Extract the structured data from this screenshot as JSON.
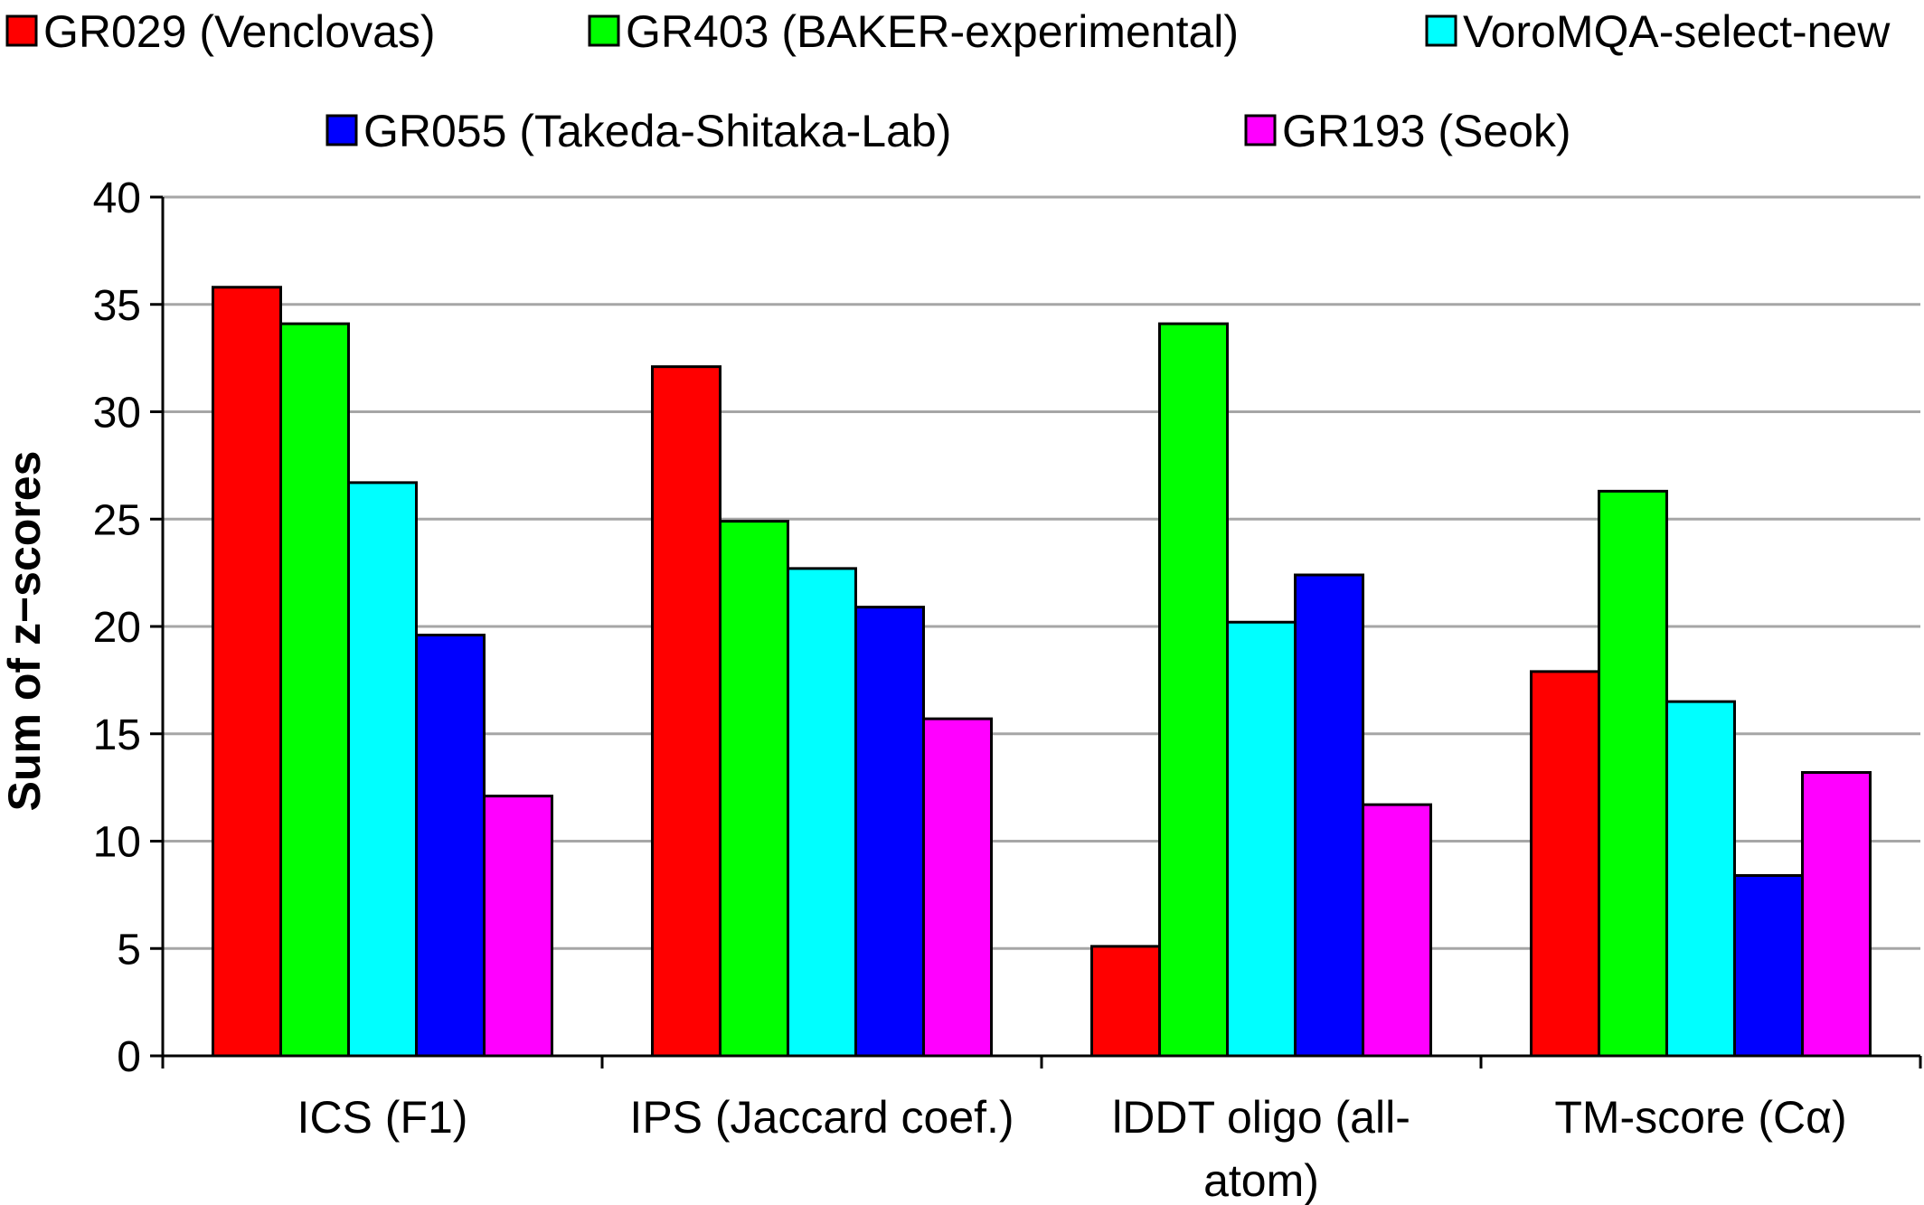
{
  "chart_data": {
    "type": "bar",
    "title": "",
    "xlabel": "",
    "ylabel": "Sum of z−scores",
    "ylim": [
      0,
      40
    ],
    "yticks": [
      0,
      5,
      10,
      15,
      20,
      25,
      30,
      35,
      40
    ],
    "grid": true,
    "legend_placement": "top",
    "categories": [
      [
        "ICS (F1)"
      ],
      [
        "IPS (Jaccard coef.)"
      ],
      [
        "lDDT oligo (all-",
        "atom)"
      ],
      [
        "TM-score (Cα)"
      ]
    ],
    "series": [
      {
        "name": "GR029 (Venclovas)",
        "color": "#ff0000",
        "values": [
          35.8,
          32.1,
          5.1,
          17.9
        ]
      },
      {
        "name": "GR403 (BAKER-experimental)",
        "color": "#00ff00",
        "values": [
          34.1,
          24.9,
          34.1,
          26.3
        ]
      },
      {
        "name": "VoroMQA-select-new",
        "color": "#00ffff",
        "values": [
          26.7,
          22.7,
          20.2,
          16.5
        ]
      },
      {
        "name": "GR055 (Takeda-Shitaka-Lab)",
        "color": "#0000ff",
        "values": [
          19.6,
          20.9,
          22.4,
          8.4
        ]
      },
      {
        "name": "GR193 (Seok)",
        "color": "#ff00ff",
        "values": [
          12.1,
          15.7,
          11.7,
          13.2
        ]
      }
    ]
  }
}
